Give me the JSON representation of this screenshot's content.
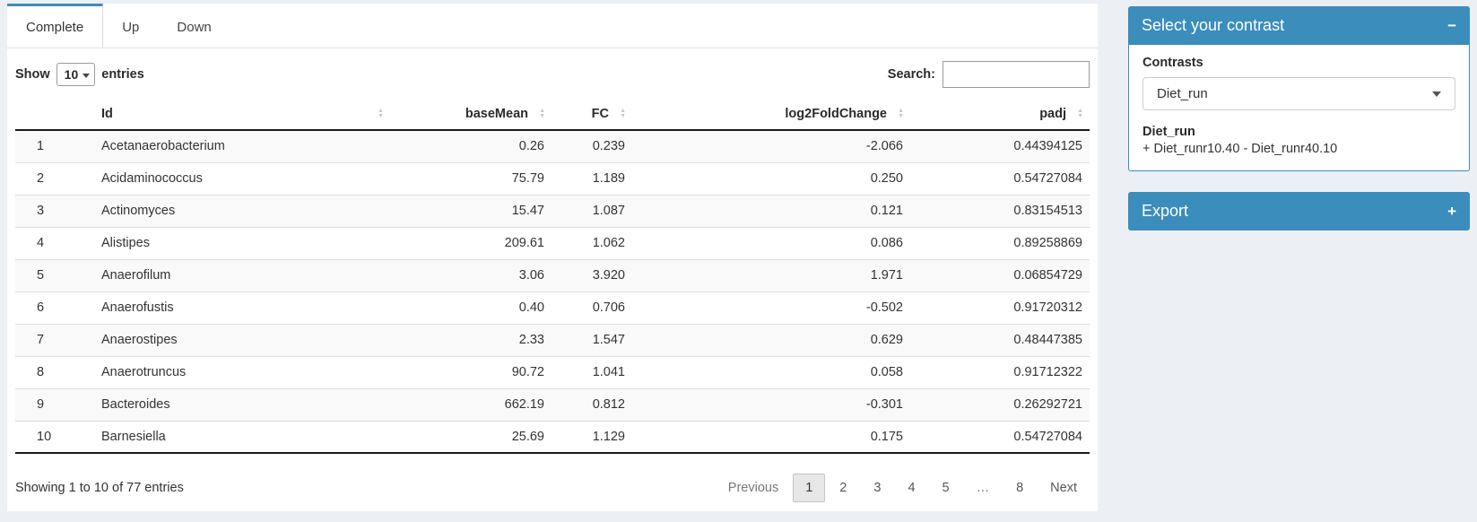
{
  "colors": {
    "primary": "#3b8dbc"
  },
  "tabs": [
    {
      "label": "Complete",
      "active": true
    },
    {
      "label": "Up",
      "active": false
    },
    {
      "label": "Down",
      "active": false
    }
  ],
  "controls": {
    "show_label": "Show",
    "page_length": "10",
    "entries_label": "entries",
    "search_label": "Search:",
    "search_value": ""
  },
  "icons": {
    "sort_asc": "▲",
    "sort_desc": "▼"
  },
  "table": {
    "columns": [
      {
        "label": ""
      },
      {
        "label": "Id"
      },
      {
        "label": "baseMean"
      },
      {
        "label": "FC"
      },
      {
        "label": "log2FoldChange"
      },
      {
        "label": "padj"
      }
    ],
    "rows": [
      {
        "num": "1",
        "id": "Acetanaerobacterium",
        "baseMean": "0.26",
        "fc": "0.239",
        "log2fc": "-2.066",
        "padj": "0.44394125"
      },
      {
        "num": "2",
        "id": "Acidaminococcus",
        "baseMean": "75.79",
        "fc": "1.189",
        "log2fc": "0.250",
        "padj": "0.54727084"
      },
      {
        "num": "3",
        "id": "Actinomyces",
        "baseMean": "15.47",
        "fc": "1.087",
        "log2fc": "0.121",
        "padj": "0.83154513"
      },
      {
        "num": "4",
        "id": "Alistipes",
        "baseMean": "209.61",
        "fc": "1.062",
        "log2fc": "0.086",
        "padj": "0.89258869"
      },
      {
        "num": "5",
        "id": "Anaerofilum",
        "baseMean": "3.06",
        "fc": "3.920",
        "log2fc": "1.971",
        "padj": "0.06854729"
      },
      {
        "num": "6",
        "id": "Anaerofustis",
        "baseMean": "0.40",
        "fc": "0.706",
        "log2fc": "-0.502",
        "padj": "0.91720312"
      },
      {
        "num": "7",
        "id": "Anaerostipes",
        "baseMean": "2.33",
        "fc": "1.547",
        "log2fc": "0.629",
        "padj": "0.48447385"
      },
      {
        "num": "8",
        "id": "Anaerotruncus",
        "baseMean": "90.72",
        "fc": "1.041",
        "log2fc": "0.058",
        "padj": "0.91712322"
      },
      {
        "num": "9",
        "id": "Bacteroides",
        "baseMean": "662.19",
        "fc": "0.812",
        "log2fc": "-0.301",
        "padj": "0.26292721"
      },
      {
        "num": "10",
        "id": "Barnesiella",
        "baseMean": "25.69",
        "fc": "1.129",
        "log2fc": "0.175",
        "padj": "0.54727084"
      }
    ]
  },
  "footer": {
    "info": "Showing 1 to 10 of 77 entries",
    "pagination": [
      {
        "label": "Previous",
        "name": "previous",
        "state": "disabled"
      },
      {
        "label": "1",
        "name": "page-1",
        "state": "current"
      },
      {
        "label": "2",
        "name": "page-2",
        "state": ""
      },
      {
        "label": "3",
        "name": "page-3",
        "state": ""
      },
      {
        "label": "4",
        "name": "page-4",
        "state": ""
      },
      {
        "label": "5",
        "name": "page-5",
        "state": ""
      },
      {
        "label": "…",
        "name": "ellipsis",
        "state": "disabled"
      },
      {
        "label": "8",
        "name": "page-8",
        "state": ""
      },
      {
        "label": "Next",
        "name": "next",
        "state": ""
      }
    ]
  },
  "contrast_box": {
    "title": "Select your contrast",
    "collapse_icon": "−",
    "contrasts_label": "Contrasts",
    "selected_contrast": "Diet_run",
    "contrast_name": "Diet_run",
    "contrast_formula": "+ Diet_runr10.40 - Diet_runr40.10"
  },
  "export_box": {
    "title": "Export",
    "expand_icon": "+"
  }
}
